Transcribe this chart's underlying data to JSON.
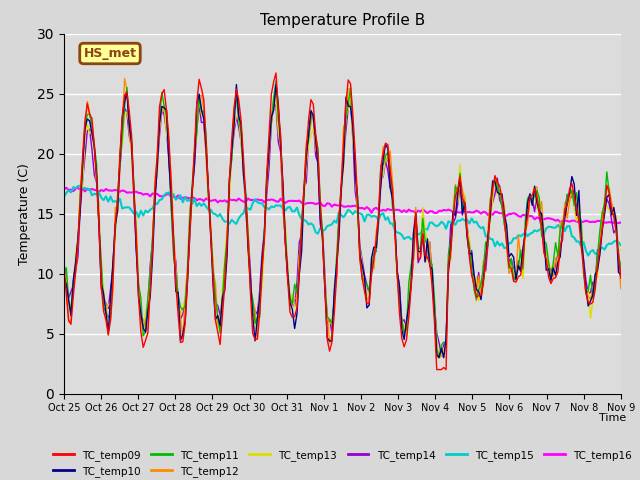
{
  "title": "Temperature Profile B",
  "xlabel": "Time",
  "ylabel": "Temperature (C)",
  "ylim": [
    0,
    30
  ],
  "annotation_text": "HS_met",
  "annotation_color": "#8B4513",
  "annotation_bg": "#FFFF99",
  "bg_color": "#DCDCDC",
  "series": {
    "TC_temp09": {
      "color": "#FF0000",
      "lw": 1.0
    },
    "TC_temp10": {
      "color": "#00008B",
      "lw": 1.0
    },
    "TC_temp11": {
      "color": "#00BB00",
      "lw": 1.0
    },
    "TC_temp12": {
      "color": "#FF8C00",
      "lw": 1.0
    },
    "TC_temp13": {
      "color": "#DDDD00",
      "lw": 1.0
    },
    "TC_temp14": {
      "color": "#9400D3",
      "lw": 1.0
    },
    "TC_temp15": {
      "color": "#00CCCC",
      "lw": 1.5
    },
    "TC_temp16": {
      "color": "#FF00FF",
      "lw": 1.5
    }
  },
  "xtick_labels": [
    "Oct 25",
    "Oct 26",
    "Oct 27",
    "Oct 28",
    "Oct 29",
    "Oct 30",
    "Oct 31",
    "Nov 1",
    "Nov 2",
    "Nov 3",
    "Nov 4",
    "Nov 5",
    "Nov 6",
    "Nov 7",
    "Nov 8",
    "Nov 9"
  ],
  "legend_order": [
    "TC_temp09",
    "TC_temp10",
    "TC_temp11",
    "TC_temp12",
    "TC_temp13",
    "TC_temp14",
    "TC_temp15",
    "TC_temp16"
  ]
}
